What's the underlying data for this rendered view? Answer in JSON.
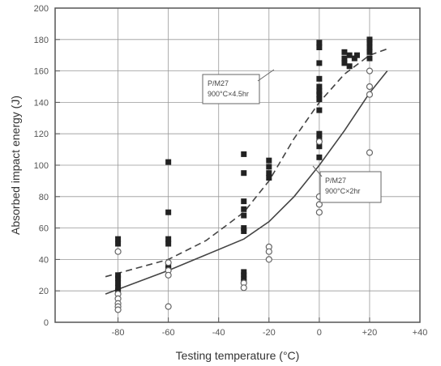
{
  "chart_data": {
    "type": "scatter",
    "xlabel": "Testing temperature (°C)",
    "ylabel": "Absorbed impact energy (J)",
    "xlim": [
      -105,
      40
    ],
    "ylim": [
      0,
      200
    ],
    "xticks": [
      -80,
      -60,
      -40,
      -20,
      0,
      20,
      40
    ],
    "xtick_labels": [
      "-80",
      "-60",
      "-40",
      "-20",
      "0",
      "+20",
      "+40"
    ],
    "yticks": [
      0,
      20,
      40,
      60,
      80,
      100,
      120,
      140,
      160,
      180,
      200
    ],
    "grid": true,
    "series": [
      {
        "marker": "filled-square",
        "points": [
          [
            -80,
            53
          ],
          [
            -80,
            50
          ],
          [
            -80,
            30
          ],
          [
            -80,
            28
          ],
          [
            -80,
            25
          ],
          [
            -80,
            22
          ],
          [
            -80,
            20
          ],
          [
            -60,
            102
          ],
          [
            -60,
            70
          ],
          [
            -60,
            53
          ],
          [
            -60,
            50
          ],
          [
            -60,
            36
          ],
          [
            -60,
            34
          ],
          [
            -30,
            107
          ],
          [
            -30,
            95
          ],
          [
            -30,
            77
          ],
          [
            -30,
            72
          ],
          [
            -30,
            68
          ],
          [
            -30,
            60
          ],
          [
            -30,
            58
          ],
          [
            -30,
            32
          ],
          [
            -30,
            30
          ],
          [
            -30,
            28
          ],
          [
            -30,
            26
          ],
          [
            -20,
            103
          ],
          [
            -20,
            99
          ],
          [
            -20,
            95
          ],
          [
            -20,
            92
          ],
          [
            0,
            178
          ],
          [
            0,
            175
          ],
          [
            0,
            165
          ],
          [
            0,
            155
          ],
          [
            0,
            150
          ],
          [
            0,
            147
          ],
          [
            0,
            145
          ],
          [
            0,
            142
          ],
          [
            0,
            135
          ],
          [
            0,
            120
          ],
          [
            0,
            117
          ],
          [
            0,
            112
          ],
          [
            0,
            105
          ],
          [
            10,
            172
          ],
          [
            10,
            168
          ],
          [
            10,
            165
          ],
          [
            12,
            170
          ],
          [
            12,
            163
          ],
          [
            14,
            168
          ],
          [
            15,
            170
          ],
          [
            20,
            180
          ],
          [
            20,
            178
          ],
          [
            20,
            175
          ],
          [
            20,
            172
          ],
          [
            20,
            168
          ]
        ]
      },
      {
        "marker": "open-circle",
        "points": [
          [
            -80,
            45
          ],
          [
            -80,
            18
          ],
          [
            -80,
            15
          ],
          [
            -80,
            12
          ],
          [
            -80,
            10
          ],
          [
            -80,
            8
          ],
          [
            -60,
            38
          ],
          [
            -60,
            33
          ],
          [
            -60,
            30
          ],
          [
            -60,
            10
          ],
          [
            -30,
            25
          ],
          [
            -30,
            22
          ],
          [
            -20,
            48
          ],
          [
            -20,
            45
          ],
          [
            -20,
            40
          ],
          [
            0,
            80
          ],
          [
            0,
            75
          ],
          [
            0,
            70
          ],
          [
            0,
            115
          ],
          [
            20,
            160
          ],
          [
            20,
            150
          ],
          [
            20,
            145
          ],
          [
            20,
            108
          ]
        ]
      },
      {
        "line": "dashed",
        "label_lines": [
          "P/M27",
          "900°C×4.5hr"
        ],
        "curve": [
          [
            -85,
            29
          ],
          [
            -60,
            40
          ],
          [
            -45,
            52
          ],
          [
            -30,
            70
          ],
          [
            -20,
            90
          ],
          [
            -10,
            117
          ],
          [
            0,
            140
          ],
          [
            10,
            158
          ],
          [
            20,
            170
          ],
          [
            27,
            174
          ]
        ]
      },
      {
        "line": "solid",
        "label_lines": [
          "P/M27",
          "900°C×2hr"
        ],
        "curve": [
          [
            -85,
            18
          ],
          [
            -60,
            33
          ],
          [
            -45,
            43
          ],
          [
            -30,
            53
          ],
          [
            -20,
            64
          ],
          [
            -10,
            80
          ],
          [
            0,
            100
          ],
          [
            10,
            122
          ],
          [
            20,
            146
          ],
          [
            27,
            160
          ]
        ]
      }
    ]
  }
}
